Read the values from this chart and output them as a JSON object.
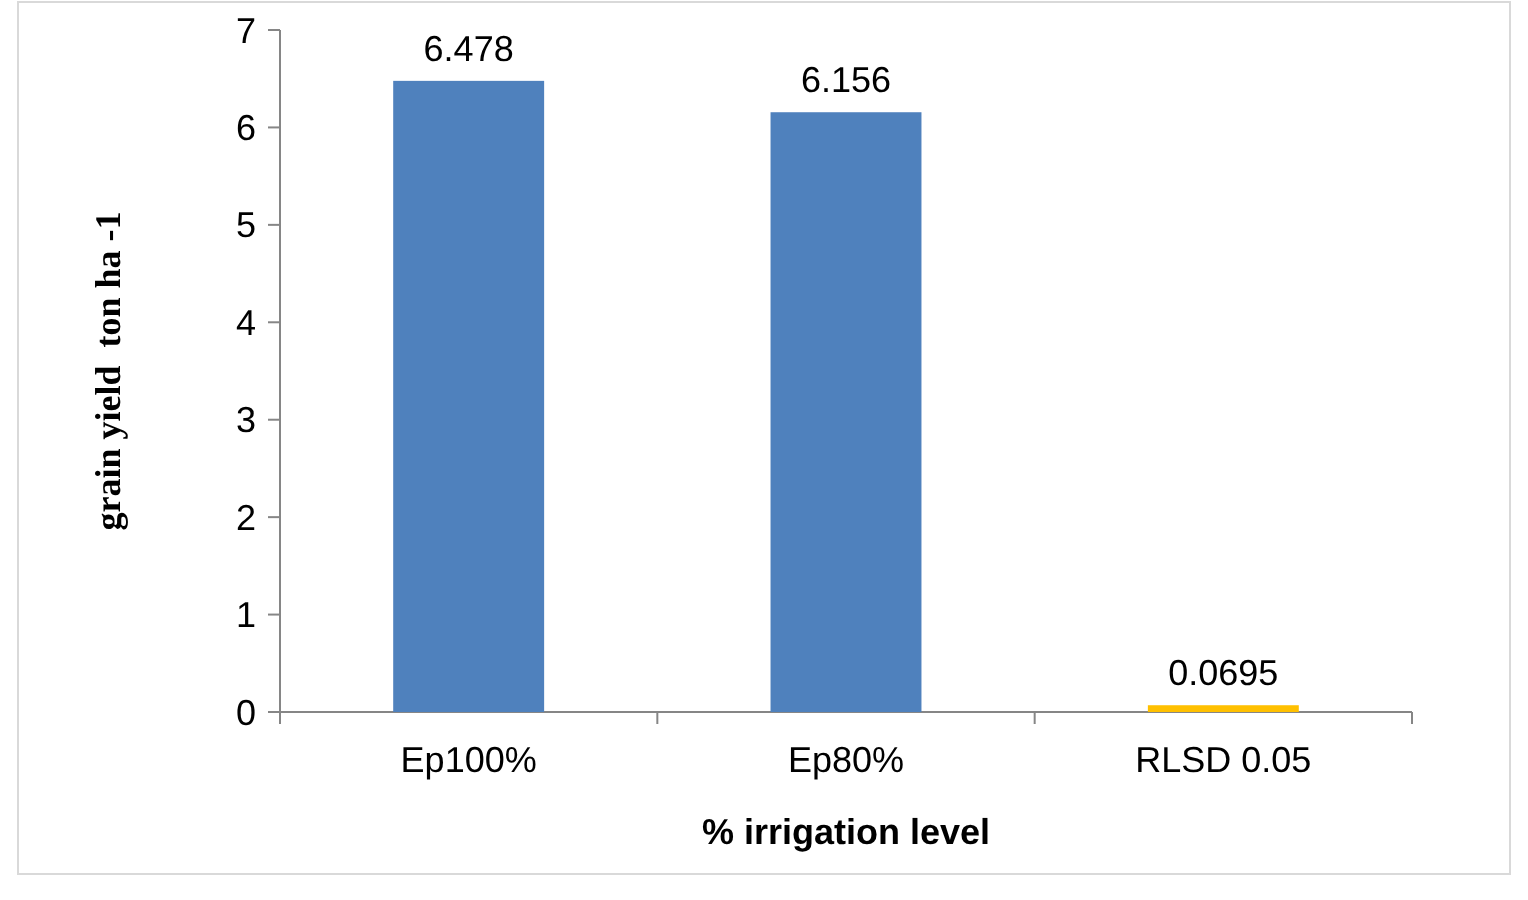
{
  "chart_data": {
    "type": "bar",
    "xlabel": "% irrigation level",
    "ylabel": "grain yield  ton ha -1",
    "categories": [
      "Ep100%",
      "Ep80%",
      "RLSD 0.05"
    ],
    "values": [
      6.478,
      6.156,
      0.0695
    ],
    "colors": [
      "#4f81bd",
      "#4f81bd",
      "#ffc000"
    ],
    "ylim": [
      0,
      7
    ],
    "yticks": [
      0,
      1,
      2,
      3,
      4,
      5,
      6,
      7
    ],
    "grid": false,
    "data_labels": true
  }
}
